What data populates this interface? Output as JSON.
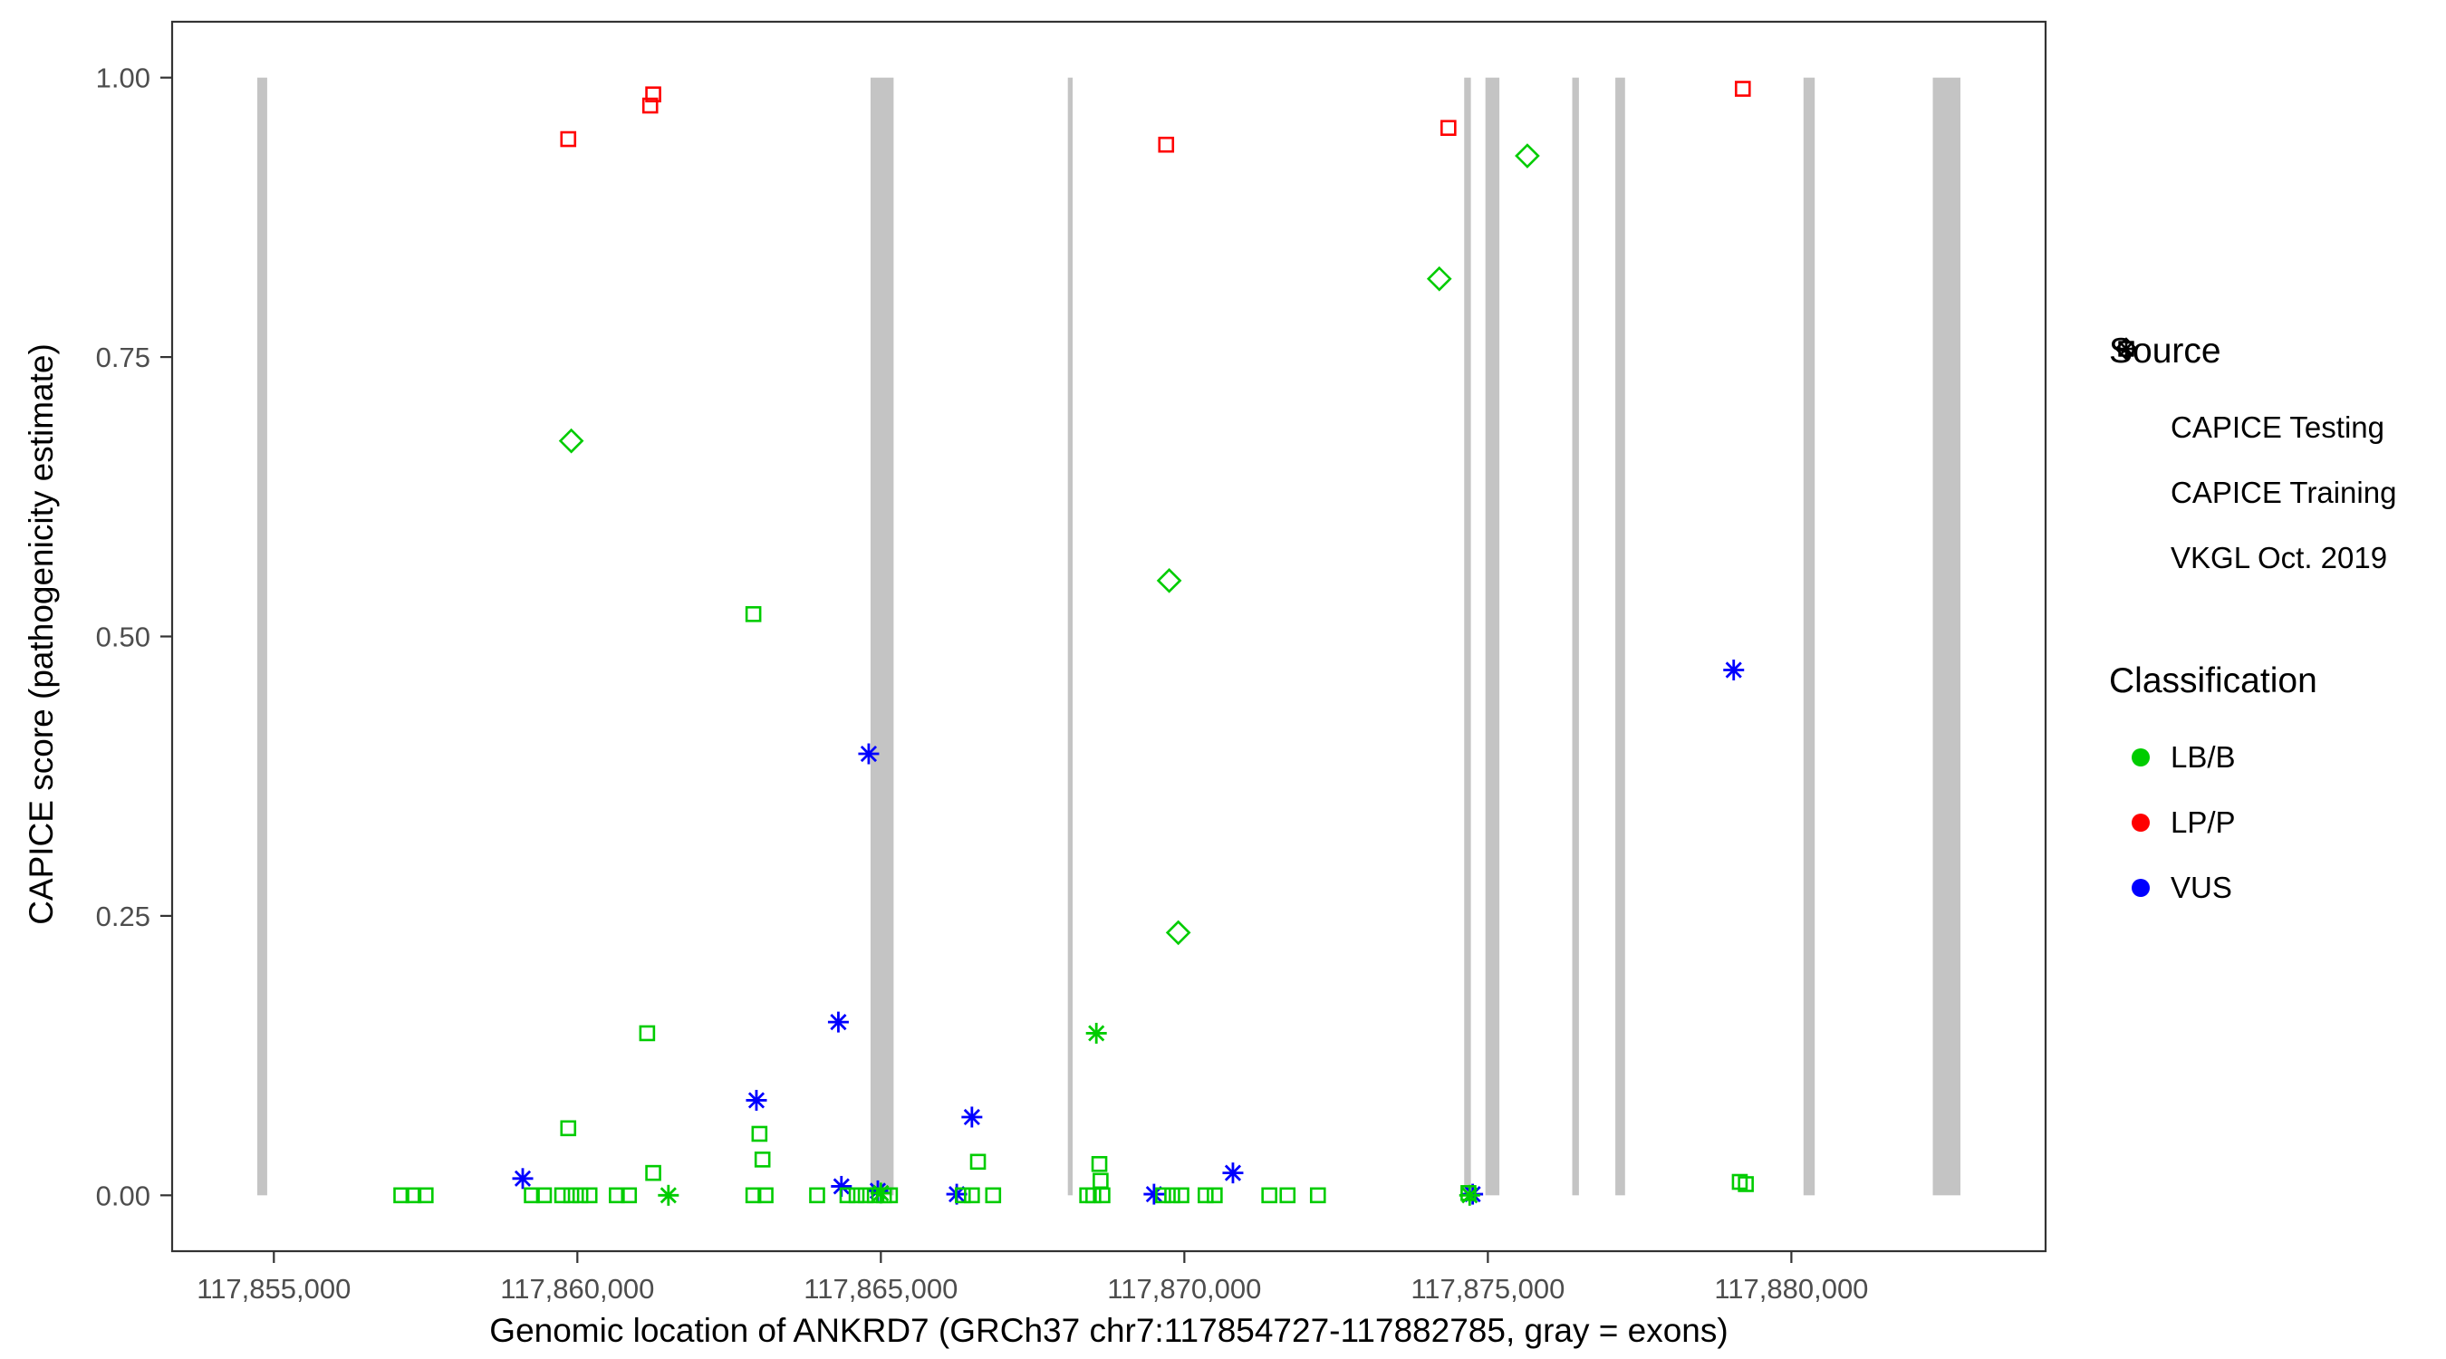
{
  "chart_data": {
    "type": "scatter",
    "title": "",
    "xlabel": "Genomic location of ANKRD7 (GRCh37 chr7:117854727-117882785, gray = exons)",
    "ylabel": "CAPICE score (pathogenicity estimate)",
    "xlim": [
      117853324,
      117884188
    ],
    "ylim": [
      -0.05,
      1.05
    ],
    "x_ticks": [
      117855000,
      117860000,
      117865000,
      117870000,
      117875000,
      117880000
    ],
    "x_tick_labels": [
      "117,855,000",
      "117,860,000",
      "117,865,000",
      "117,870,000",
      "117,875,000",
      "117,880,000"
    ],
    "y_ticks": [
      0,
      0.25,
      0.5,
      0.75,
      1.0
    ],
    "y_tick_labels": [
      "0.00",
      "0.25",
      "0.50",
      "0.75",
      "1.00"
    ],
    "grid": false,
    "legend_position": "right",
    "exon_color": "#c4c4c4",
    "exons": [
      [
        117854727,
        117854890
      ],
      [
        117864830,
        117865210
      ],
      [
        117868080,
        117868160
      ],
      [
        117874610,
        117874720
      ],
      [
        117874960,
        117875190
      ],
      [
        117876390,
        117876500
      ],
      [
        117877100,
        117877260
      ],
      [
        117880200,
        117880385
      ],
      [
        117882330,
        117882785
      ]
    ],
    "classification_colors": {
      "LB/B": "#00cc00",
      "LP/P": "#ff0000",
      "VUS": "#0000ff"
    },
    "source_shapes": {
      "CAPICE Testing": "diamond",
      "CAPICE Training": "square",
      "VKGL Oct. 2019": "asterisk"
    },
    "points_format": [
      "x",
      "y",
      "source",
      "classification"
    ],
    "points": [
      [
        117859850,
        0.945,
        "CAPICE Training",
        "LP/P"
      ],
      [
        117861200,
        0.975,
        "CAPICE Training",
        "LP/P"
      ],
      [
        117861250,
        0.985,
        "CAPICE Training",
        "LP/P"
      ],
      [
        117869700,
        0.94,
        "CAPICE Training",
        "LP/P"
      ],
      [
        117874350,
        0.955,
        "CAPICE Training",
        "LP/P"
      ],
      [
        117879200,
        0.99,
        "CAPICE Training",
        "LP/P"
      ],
      [
        117859900,
        0.675,
        "CAPICE Testing",
        "LB/B"
      ],
      [
        117869750,
        0.55,
        "CAPICE Testing",
        "LB/B"
      ],
      [
        117869900,
        0.235,
        "CAPICE Testing",
        "LB/B"
      ],
      [
        117874200,
        0.82,
        "CAPICE Testing",
        "LB/B"
      ],
      [
        117875650,
        0.93,
        "CAPICE Testing",
        "LB/B"
      ],
      [
        117864800,
        0.395,
        "VKGL Oct. 2019",
        "VUS"
      ],
      [
        117879050,
        0.47,
        "VKGL Oct. 2019",
        "VUS"
      ],
      [
        117864300,
        0.155,
        "VKGL Oct. 2019",
        "VUS"
      ],
      [
        117862950,
        0.085,
        "VKGL Oct. 2019",
        "VUS"
      ],
      [
        117866500,
        0.07,
        "VKGL Oct. 2019",
        "VUS"
      ],
      [
        117859100,
        0.015,
        "VKGL Oct. 2019",
        "VUS"
      ],
      [
        117870800,
        0.02,
        "VKGL Oct. 2019",
        "VUS"
      ],
      [
        117864350,
        0.008,
        "VKGL Oct. 2019",
        "VUS"
      ],
      [
        117864950,
        0.004,
        "VKGL Oct. 2019",
        "VUS"
      ],
      [
        117866250,
        0.001,
        "VKGL Oct. 2019",
        "VUS"
      ],
      [
        117869500,
        0.001,
        "VKGL Oct. 2019",
        "VUS"
      ],
      [
        117874750,
        0.001,
        "VKGL Oct. 2019",
        "VUS"
      ],
      [
        117861500,
        0.0,
        "VKGL Oct. 2019",
        "LB/B"
      ],
      [
        117868550,
        0.145,
        "VKGL Oct. 2019",
        "LB/B"
      ],
      [
        117874700,
        0.0,
        "VKGL Oct. 2019",
        "LB/B"
      ],
      [
        117865000,
        0.002,
        "VKGL Oct. 2019",
        "LB/B"
      ],
      [
        117862900,
        0.52,
        "CAPICE Training",
        "LB/B"
      ],
      [
        117861150,
        0.145,
        "CAPICE Training",
        "LB/B"
      ],
      [
        117859850,
        0.06,
        "CAPICE Training",
        "LB/B"
      ],
      [
        117863000,
        0.055,
        "CAPICE Training",
        "LB/B"
      ],
      [
        117863050,
        0.032,
        "CAPICE Training",
        "LB/B"
      ],
      [
        117861250,
        0.02,
        "CAPICE Training",
        "LB/B"
      ],
      [
        117866600,
        0.03,
        "CAPICE Training",
        "LB/B"
      ],
      [
        117868600,
        0.028,
        "CAPICE Training",
        "LB/B"
      ],
      [
        117868620,
        0.013,
        "CAPICE Training",
        "LB/B"
      ],
      [
        117879150,
        0.012,
        "CAPICE Training",
        "LB/B"
      ],
      [
        117879250,
        0.01,
        "CAPICE Training",
        "LB/B"
      ],
      [
        117857100,
        0.0,
        "CAPICE Training",
        "LB/B"
      ],
      [
        117857300,
        0.0,
        "CAPICE Training",
        "LB/B"
      ],
      [
        117857500,
        0.0,
        "CAPICE Training",
        "LB/B"
      ],
      [
        117859250,
        0.0,
        "CAPICE Training",
        "LB/B"
      ],
      [
        117859450,
        0.0,
        "CAPICE Training",
        "LB/B"
      ],
      [
        117859750,
        0.0,
        "CAPICE Training",
        "LB/B"
      ],
      [
        117859900,
        0.0,
        "CAPICE Training",
        "LB/B"
      ],
      [
        117860050,
        0.0,
        "CAPICE Training",
        "LB/B"
      ],
      [
        117860200,
        0.0,
        "CAPICE Training",
        "LB/B"
      ],
      [
        117860650,
        0.0,
        "CAPICE Training",
        "LB/B"
      ],
      [
        117860850,
        0.0,
        "CAPICE Training",
        "LB/B"
      ],
      [
        117862900,
        0.0,
        "CAPICE Training",
        "LB/B"
      ],
      [
        117863100,
        0.0,
        "CAPICE Training",
        "LB/B"
      ],
      [
        117863950,
        0.0,
        "CAPICE Training",
        "LB/B"
      ],
      [
        117864450,
        0.0,
        "CAPICE Training",
        "LB/B"
      ],
      [
        117864600,
        0.0,
        "CAPICE Training",
        "LB/B"
      ],
      [
        117864750,
        0.0,
        "CAPICE Training",
        "LB/B"
      ],
      [
        117864900,
        0.0,
        "CAPICE Training",
        "LB/B"
      ],
      [
        117865050,
        0.0,
        "CAPICE Training",
        "LB/B"
      ],
      [
        117865150,
        0.0,
        "CAPICE Training",
        "LB/B"
      ],
      [
        117866350,
        0.0,
        "CAPICE Training",
        "LB/B"
      ],
      [
        117866500,
        0.0,
        "CAPICE Training",
        "LB/B"
      ],
      [
        117866850,
        0.0,
        "CAPICE Training",
        "LB/B"
      ],
      [
        117868400,
        0.0,
        "CAPICE Training",
        "LB/B"
      ],
      [
        117868500,
        0.0,
        "CAPICE Training",
        "LB/B"
      ],
      [
        117868650,
        0.0,
        "CAPICE Training",
        "LB/B"
      ],
      [
        117869650,
        0.0,
        "CAPICE Training",
        "LB/B"
      ],
      [
        117869800,
        0.0,
        "CAPICE Training",
        "LB/B"
      ],
      [
        117869950,
        0.0,
        "CAPICE Training",
        "LB/B"
      ],
      [
        117870350,
        0.0,
        "CAPICE Training",
        "LB/B"
      ],
      [
        117870500,
        0.0,
        "CAPICE Training",
        "LB/B"
      ],
      [
        117871400,
        0.0,
        "CAPICE Training",
        "LB/B"
      ],
      [
        117871700,
        0.0,
        "CAPICE Training",
        "LB/B"
      ],
      [
        117872200,
        0.0,
        "CAPICE Training",
        "LB/B"
      ],
      [
        117874680,
        0.002,
        "CAPICE Training",
        "LB/B"
      ]
    ]
  },
  "legend": {
    "source": {
      "title": "Source",
      "items": [
        {
          "label": "CAPICE Testing",
          "shape": "diamond"
        },
        {
          "label": "CAPICE Training",
          "shape": "square"
        },
        {
          "label": "VKGL Oct. 2019",
          "shape": "asterisk"
        }
      ]
    },
    "classification": {
      "title": "Classification",
      "items": [
        {
          "label": "LB/B",
          "color": "#00cc00"
        },
        {
          "label": "LP/P",
          "color": "#ff0000"
        },
        {
          "label": "VUS",
          "color": "#0000ff"
        }
      ]
    }
  }
}
